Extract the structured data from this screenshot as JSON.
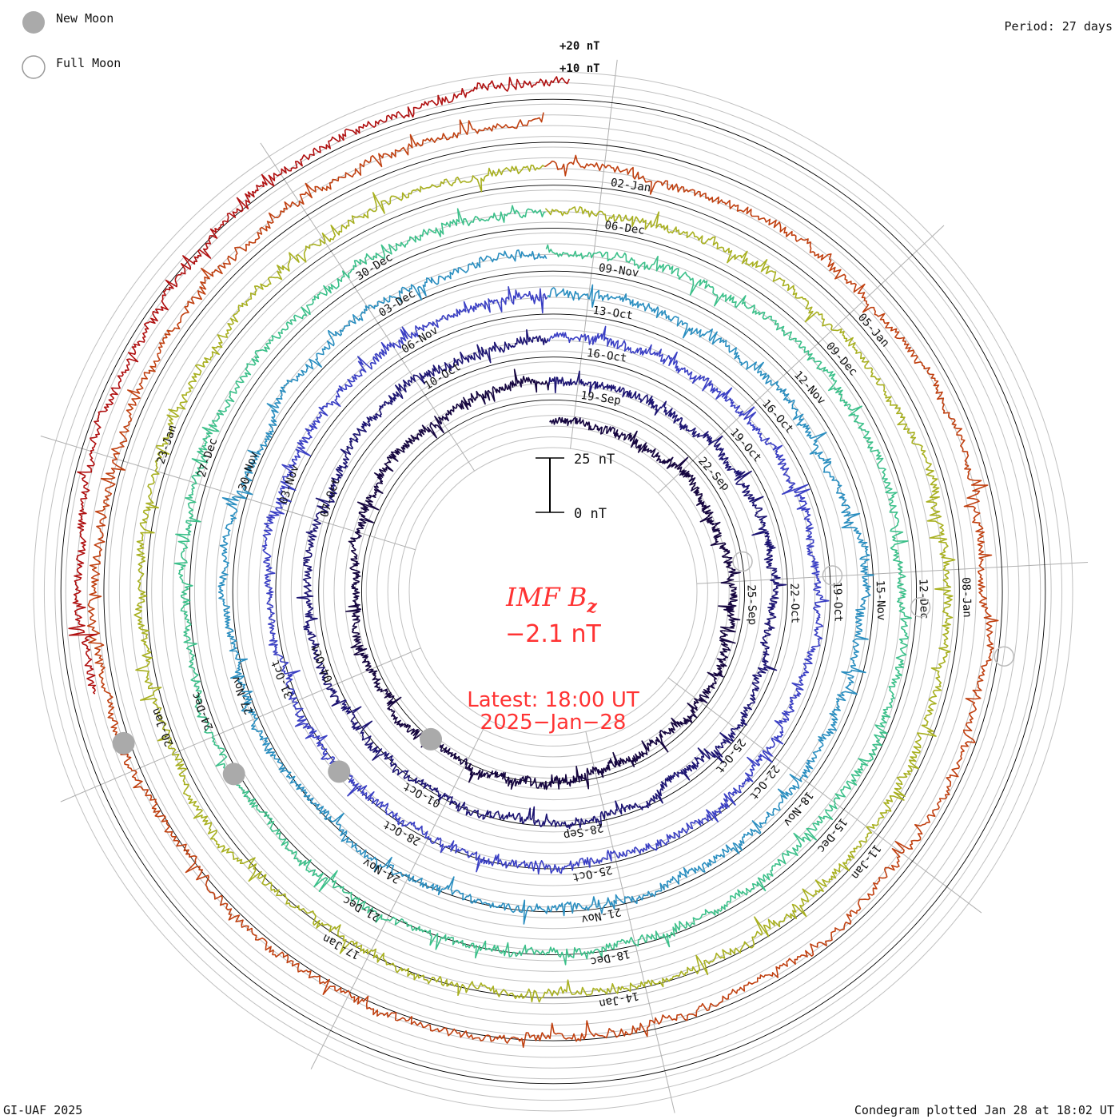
{
  "legend": {
    "new_moon_label": "New Moon",
    "full_moon_label": "Full Moon"
  },
  "header": {
    "period": "Period: 27 days"
  },
  "scale": {
    "outer_upper": "+20 nT",
    "outer_lower": "+10 nT",
    "bar_top": "25 nT",
    "bar_bottom": "0 nT"
  },
  "center": {
    "quantity": "IMF B",
    "quantity_sub": "z",
    "value": "−2.1 nT",
    "latest": "Latest: 18:00 UT",
    "date": "2025−Jan−28"
  },
  "footer": {
    "credit": "GI-UAF 2025",
    "plotted": "Condegram plotted Jan 28 at 18:02 UT"
  },
  "colors": {
    "text_red": "#ff3333",
    "grid": "#b4b4b4",
    "new_moon": "#aaaaaa"
  },
  "chart_data": {
    "type": "line",
    "title": "IMF Bz",
    "period_days": 27,
    "units": "nT",
    "latest_value": -2.1,
    "series": [
      {
        "color": "#15053f",
        "date_labels": [
          "19-Sep",
          "22-Sep",
          "25-Sep"
        ]
      },
      {
        "color": "#1c1472",
        "date_labels": [
          "16-Oct",
          "19-Oct",
          "22-Oct",
          "25-Oct",
          "28-Sep",
          "01-Oct",
          "04-Oct",
          "07-Oct",
          "10-Oct"
        ]
      },
      {
        "color": "#3a3fc4",
        "date_labels": [
          "13-Oct",
          "16-Oct",
          "19-Oct",
          "22-Oct",
          "25-Oct",
          "28-Oct",
          "31-Oct",
          "03-Nov",
          "06-Nov"
        ]
      },
      {
        "color": "#2a8ec0",
        "date_labels": [
          "09-Nov",
          "12-Nov",
          "15-Nov",
          "18-Nov",
          "21-Nov",
          "24-Nov",
          "27-Nov",
          "30-Nov",
          "03-Dec"
        ]
      },
      {
        "color": "#3cc08a",
        "date_labels": [
          "06-Dec",
          "09-Dec",
          "12-Dec",
          "15-Dec",
          "18-Dec",
          "21-Dec",
          "24-Dec",
          "27-Dec",
          "30-Dec"
        ]
      },
      {
        "color": "#a8b020",
        "date_labels": [
          "02-Jan",
          "05-Jan",
          "08-Jan",
          "11-Jan",
          "14-Jan",
          "17-Jan",
          "20-Jan",
          "23-Jan"
        ]
      },
      {
        "color": "#c04010",
        "date_labels": []
      },
      {
        "color": "#b01010",
        "date_labels": []
      }
    ],
    "new_moons": [
      "2024-Oct-02",
      "2024-Nov-01",
      "2024-Dec-01",
      "2024-Dec-30"
    ],
    "full_moons": [
      "2024-Oct-17",
      "2024-Nov-15",
      "2024-Dec-15",
      "2025-Jan-13"
    ]
  }
}
